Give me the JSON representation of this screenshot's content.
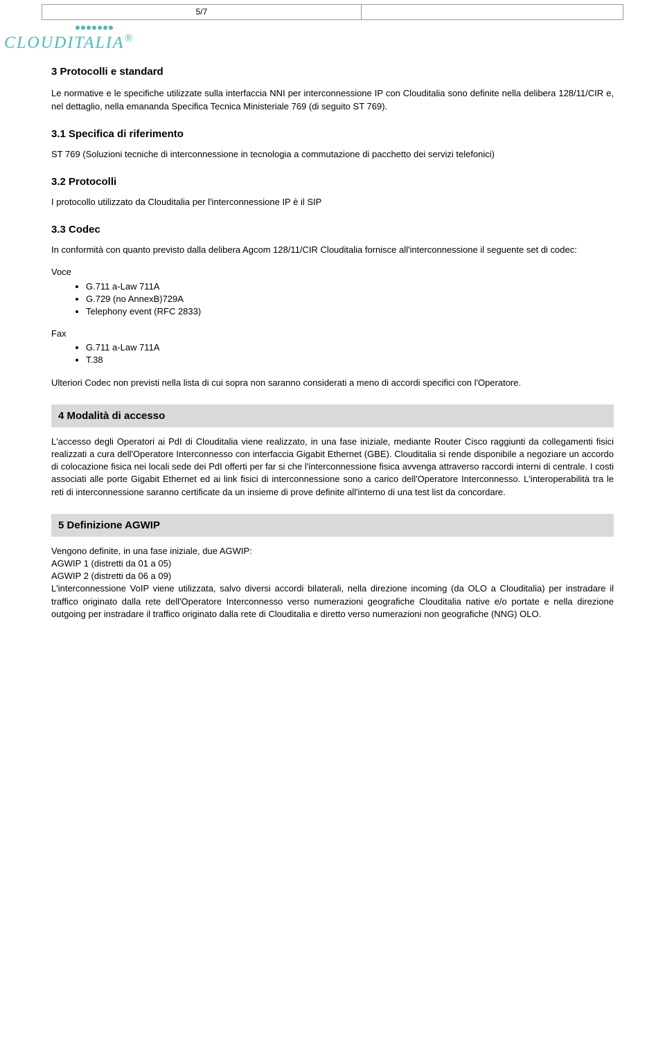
{
  "header": {
    "page_num": "5/7",
    "logo_text": "CLOUDITALIA"
  },
  "s3": {
    "title": "3   Protocolli e standard",
    "intro": "Le normative e le specifiche utilizzate sulla interfaccia NNI per interconnessione IP con Clouditalia sono definite nella delibera 128/11/CIR e, nel dettaglio, nella emananda Specifica Tecnica Ministeriale 769 (di seguito ST 769).",
    "s31": {
      "title": "3.1   Specifica di riferimento",
      "body": "ST 769 (Soluzioni tecniche di interconnessione in tecnologia a commutazione di pacchetto dei servizi telefonici)"
    },
    "s32": {
      "title": "3.2   Protocolli",
      "body": "I protocollo utilizzato da Clouditalia per l'interconnessione IP è il SIP"
    },
    "s33": {
      "title": "3.3   Codec",
      "intro": "In conformità con quanto previsto dalla delibera Agcom 128/11/CIR Clouditalia fornisce all'interconnessione il seguente set di codec:",
      "voce_label": "Voce",
      "voce_items": [
        "G.711 a-Law 711A",
        "G.729 (no AnnexB)729A",
        "Telephony event (RFC 2833)"
      ],
      "fax_label": "Fax",
      "fax_items": [
        "G.711 a-Law 711A",
        "T.38"
      ],
      "note": "Ulteriori Codec non previsti nella lista di cui sopra non saranno considerati a meno di accordi specifici con l'Operatore."
    }
  },
  "s4": {
    "title": "4   Modalità di accesso",
    "body": "L'accesso degli Operatori ai PdI di Clouditalia viene realizzato, in una fase iniziale, mediante Router Cisco raggiunti da collegamenti fisici realizzati a cura dell'Operatore Interconnesso con interfaccia Gigabit Ethernet (GBE). Clouditalia si rende disponibile a negoziare un accordo di colocazione fisica nei locali sede dei PdI offerti per far si che l'interconnessione fisica avvenga attraverso raccordi interni di centrale. I costi associati alle porte Gigabit Ethernet ed ai link fisici di interconnessione sono a carico dell'Operatore Interconnesso. L'interoperabilità tra le reti di interconnessione saranno certificate da un insieme di prove definite all'interno di una test list da concordare."
  },
  "s5": {
    "title": "5   Definizione AGWIP",
    "line1": "Vengono definite, in una fase iniziale, due AGWIP:",
    "line2": "AGWIP 1 (distretti da 01 a 05)",
    "line3": "AGWIP 2 (distretti da 06 a 09)",
    "line4": "L'interconnessione VoIP viene utilizzata, salvo diversi accordi bilaterali, nella direzione incoming (da OLO a Clouditalia) per instradare il traffico originato dalla rete dell'Operatore Interconnesso verso numerazioni geografiche Clouditalia native e/o portate e nella direzione outgoing per instradare il traffico originato dalla rete di Clouditalia e diretto verso numerazioni non geografiche (NNG) OLO."
  }
}
